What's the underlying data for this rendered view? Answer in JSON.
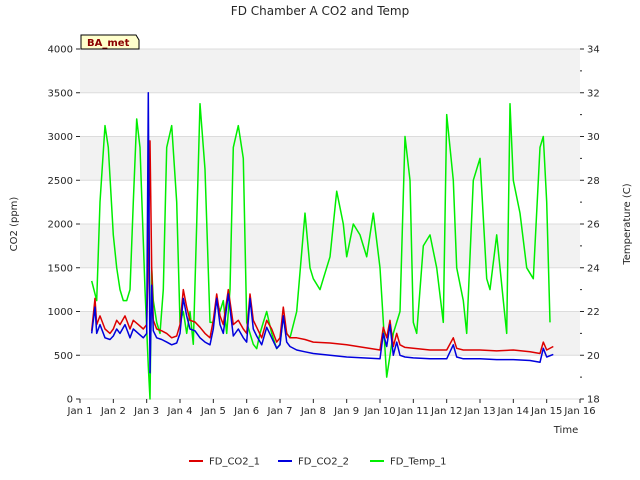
{
  "chart_data": {
    "type": "line",
    "title": "FD Chamber A CO2 and Temp",
    "xlabel": "Time",
    "ylabel_left": "CO2 (ppm)",
    "ylabel_right": "Temperature (C)",
    "badge": "BA_met",
    "xlim": [
      1,
      16
    ],
    "ylim_left": [
      0,
      4000
    ],
    "ylim_right": [
      18,
      34
    ],
    "x_ticks": [
      1,
      2,
      3,
      4,
      5,
      6,
      7,
      8,
      9,
      10,
      11,
      12,
      13,
      14,
      15,
      16
    ],
    "x_tick_labels": [
      "Jan 1",
      "Jan 2",
      "Jan 3",
      "Jan 4",
      "Jan 5",
      "Jan 6",
      "Jan 7",
      "Jan 8",
      "Jan 9",
      "Jan 10",
      "Jan 11",
      "Jan 12",
      "Jan 13",
      "Jan 14",
      "Jan 15",
      "Jan 16"
    ],
    "y_ticks_left": [
      0,
      500,
      1000,
      1500,
      2000,
      2500,
      3000,
      3500,
      4000
    ],
    "y_ticks_right": [
      18,
      20,
      22,
      24,
      26,
      28,
      30,
      32,
      34
    ],
    "grid": true,
    "background_bands": true,
    "legend_position": "bottom",
    "series": [
      {
        "name": "FD_CO2_1",
        "axis": "left",
        "color": "#dd0000",
        "x": [
          1.35,
          1.45,
          1.5,
          1.6,
          1.75,
          1.9,
          2.0,
          2.1,
          2.2,
          2.35,
          2.5,
          2.6,
          2.75,
          2.9,
          3.0,
          3.05,
          3.1,
          3.15,
          3.2,
          3.3,
          3.45,
          3.6,
          3.75,
          3.9,
          4.0,
          4.1,
          4.2,
          4.3,
          4.45,
          4.6,
          4.75,
          4.9,
          5.0,
          5.1,
          5.2,
          5.3,
          5.45,
          5.6,
          5.75,
          5.9,
          6.0,
          6.1,
          6.2,
          6.3,
          6.45,
          6.6,
          6.75,
          6.9,
          7.0,
          7.1,
          7.2,
          7.3,
          7.5,
          7.75,
          8.0,
          8.5,
          9.0,
          9.5,
          10.0,
          10.1,
          10.2,
          10.3,
          10.4,
          10.5,
          10.6,
          10.75,
          11.0,
          11.5,
          12.0,
          12.2,
          12.3,
          12.5,
          13.0,
          13.5,
          14.0,
          14.5,
          14.8,
          14.9,
          15.0,
          15.2
        ],
        "y": [
          780,
          1150,
          850,
          950,
          800,
          750,
          800,
          900,
          850,
          950,
          800,
          900,
          850,
          800,
          850,
          1600,
          2950,
          1500,
          900,
          800,
          780,
          750,
          700,
          720,
          850,
          1250,
          1050,
          900,
          880,
          820,
          750,
          700,
          900,
          1200,
          950,
          850,
          1250,
          850,
          900,
          800,
          750,
          1200,
          900,
          820,
          700,
          900,
          800,
          650,
          700,
          1050,
          750,
          700,
          700,
          680,
          650,
          640,
          620,
          590,
          560,
          820,
          700,
          900,
          600,
          750,
          620,
          590,
          580,
          560,
          560,
          700,
          580,
          560,
          560,
          550,
          560,
          540,
          520,
          650,
          560,
          600
        ]
      },
      {
        "name": "FD_CO2_2",
        "axis": "left",
        "color": "#0000dd",
        "x": [
          1.35,
          1.45,
          1.5,
          1.6,
          1.75,
          1.9,
          2.0,
          2.1,
          2.2,
          2.35,
          2.5,
          2.6,
          2.75,
          2.9,
          3.0,
          3.05,
          3.1,
          3.15,
          3.2,
          3.3,
          3.45,
          3.6,
          3.75,
          3.9,
          4.0,
          4.1,
          4.2,
          4.3,
          4.45,
          4.6,
          4.75,
          4.9,
          5.0,
          5.1,
          5.2,
          5.3,
          5.45,
          5.6,
          5.75,
          5.9,
          6.0,
          6.1,
          6.2,
          6.3,
          6.45,
          6.6,
          6.75,
          6.9,
          7.0,
          7.1,
          7.2,
          7.3,
          7.5,
          7.75,
          8.0,
          8.5,
          9.0,
          9.5,
          10.0,
          10.1,
          10.2,
          10.3,
          10.4,
          10.5,
          10.6,
          10.75,
          11.0,
          11.5,
          12.0,
          12.2,
          12.3,
          12.5,
          13.0,
          13.5,
          14.0,
          14.5,
          14.8,
          14.9,
          15.0,
          15.2
        ],
        "y": [
          750,
          1050,
          750,
          850,
          700,
          680,
          720,
          800,
          750,
          850,
          700,
          800,
          750,
          700,
          750,
          3500,
          300,
          1300,
          780,
          700,
          680,
          650,
          620,
          640,
          750,
          1150,
          950,
          800,
          780,
          700,
          650,
          620,
          800,
          1150,
          850,
          750,
          1200,
          720,
          800,
          700,
          650,
          1150,
          800,
          720,
          620,
          820,
          700,
          580,
          620,
          950,
          650,
          600,
          560,
          540,
          520,
          500,
          480,
          470,
          460,
          750,
          600,
          850,
          500,
          650,
          500,
          480,
          470,
          460,
          460,
          620,
          480,
          460,
          460,
          450,
          450,
          440,
          420,
          580,
          480,
          510
        ]
      },
      {
        "name": "FD_Temp_1",
        "axis": "right",
        "color": "#00ee00",
        "x": [
          1.35,
          1.5,
          1.6,
          1.75,
          1.85,
          2.0,
          2.1,
          2.2,
          2.3,
          2.4,
          2.5,
          2.6,
          2.7,
          2.8,
          2.95,
          3.05,
          3.1,
          3.15,
          3.2,
          3.3,
          3.4,
          3.5,
          3.6,
          3.75,
          3.9,
          4.0,
          4.1,
          4.2,
          4.3,
          4.4,
          4.5,
          4.6,
          4.75,
          4.9,
          5.0,
          5.1,
          5.2,
          5.3,
          5.4,
          5.5,
          5.6,
          5.75,
          5.9,
          6.0,
          6.1,
          6.2,
          6.3,
          6.4,
          6.5,
          6.6,
          6.75,
          6.9,
          7.0,
          7.1,
          7.2,
          7.3,
          7.5,
          7.75,
          7.9,
          8.0,
          8.2,
          8.3,
          8.5,
          8.7,
          8.9,
          9.0,
          9.2,
          9.4,
          9.6,
          9.8,
          10.0,
          10.2,
          10.4,
          10.6,
          10.75,
          10.9,
          11.0,
          11.1,
          11.3,
          11.5,
          11.7,
          11.9,
          12.0,
          12.2,
          12.3,
          12.5,
          12.6,
          12.8,
          13.0,
          13.2,
          13.3,
          13.5,
          13.7,
          13.8,
          13.9,
          14.0,
          14.2,
          14.4,
          14.6,
          14.8,
          14.9,
          15.0,
          15.1
        ],
        "y": [
          23.4,
          22.5,
          27.0,
          30.5,
          29.5,
          25.5,
          24.0,
          23.0,
          22.5,
          22.5,
          23.0,
          27.0,
          30.8,
          29.5,
          23.0,
          19.5,
          18.0,
          24.0,
          22.5,
          21.5,
          21.0,
          23.0,
          29.5,
          30.5,
          27.0,
          21.5,
          22.0,
          21.0,
          22.0,
          20.5,
          26.0,
          31.5,
          28.5,
          21.5,
          21.5,
          22.5,
          22.0,
          22.5,
          21.0,
          23.0,
          29.5,
          30.5,
          29.0,
          21.5,
          21.0,
          20.5,
          20.3,
          21.0,
          21.5,
          22.0,
          21.0,
          20.3,
          20.5,
          21.8,
          21.0,
          20.8,
          22.0,
          26.5,
          24.0,
          23.5,
          23.0,
          23.5,
          24.5,
          27.5,
          26.0,
          24.5,
          26.0,
          25.5,
          24.5,
          26.5,
          24.0,
          19.0,
          21.0,
          22.0,
          30.0,
          28.0,
          21.5,
          21.0,
          25.0,
          25.5,
          24.0,
          21.5,
          31.0,
          28.0,
          24.0,
          22.5,
          21.0,
          28.0,
          29.0,
          23.5,
          23.0,
          25.5,
          22.5,
          21.0,
          31.5,
          28.0,
          26.5,
          24.0,
          23.5,
          29.5,
          30.0,
          27.0,
          21.5
        ]
      }
    ]
  }
}
